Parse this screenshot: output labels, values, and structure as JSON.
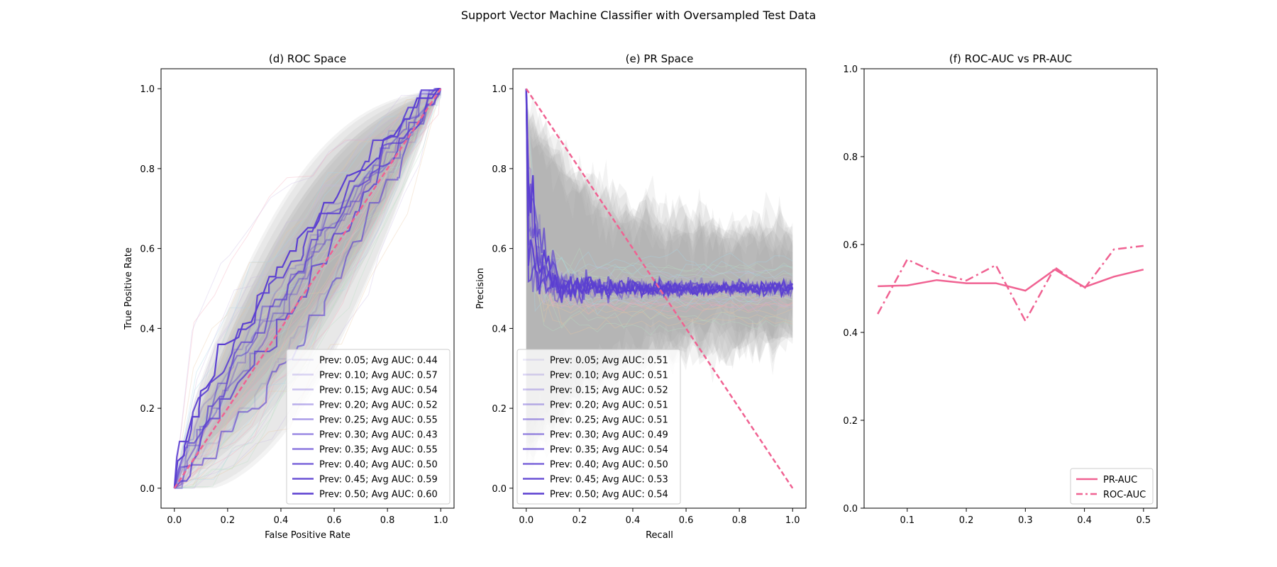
{
  "figure": {
    "title": "Support Vector Machine Classifier with Oversampled Test Data"
  },
  "colors": {
    "diagonal": "#f06292",
    "curve": "#5b3fd1",
    "band": "#9e9e9e",
    "auc_line": "#f06292"
  },
  "chart_data": [
    {
      "type": "line",
      "title": "(d) ROC Space",
      "xlabel": "False Positive Rate",
      "ylabel": "True Positive Rate",
      "xlim": [
        -0.05,
        1.05
      ],
      "ylim": [
        -0.05,
        1.05
      ],
      "xticks": [
        "0.0",
        "0.2",
        "0.4",
        "0.6",
        "0.8",
        "1.0"
      ],
      "yticks": [
        "0.0",
        "0.2",
        "0.4",
        "0.6",
        "0.8",
        "1.0"
      ],
      "grid": false,
      "legend_position": "lower-right",
      "reference_line": {
        "x": [
          0,
          1
        ],
        "y": [
          0,
          1
        ],
        "style": "dashed"
      },
      "series": [
        {
          "name": "Prev: 0.05; Avg AUC: 0.44",
          "prevalence": 0.05,
          "auc": 0.44
        },
        {
          "name": "Prev: 0.10; Avg AUC: 0.57",
          "prevalence": 0.1,
          "auc": 0.57
        },
        {
          "name": "Prev: 0.15; Avg AUC: 0.54",
          "prevalence": 0.15,
          "auc": 0.54
        },
        {
          "name": "Prev: 0.20; Avg AUC: 0.52",
          "prevalence": 0.2,
          "auc": 0.52
        },
        {
          "name": "Prev: 0.25; Avg AUC: 0.55",
          "prevalence": 0.25,
          "auc": 0.55
        },
        {
          "name": "Prev: 0.30; Avg AUC: 0.43",
          "prevalence": 0.3,
          "auc": 0.43
        },
        {
          "name": "Prev: 0.35; Avg AUC: 0.55",
          "prevalence": 0.35,
          "auc": 0.55
        },
        {
          "name": "Prev: 0.40; Avg AUC: 0.50",
          "prevalence": 0.4,
          "auc": 0.5
        },
        {
          "name": "Prev: 0.45; Avg AUC: 0.59",
          "prevalence": 0.45,
          "auc": 0.59
        },
        {
          "name": "Prev: 0.50; Avg AUC: 0.60",
          "prevalence": 0.5,
          "auc": 0.6
        }
      ]
    },
    {
      "type": "line",
      "title": "(e) PR Space",
      "xlabel": "Recall",
      "ylabel": "Precision",
      "xlim": [
        -0.05,
        1.05
      ],
      "ylim": [
        -0.05,
        1.05
      ],
      "xticks": [
        "0.0",
        "0.2",
        "0.4",
        "0.6",
        "0.8",
        "1.0"
      ],
      "yticks": [
        "0.0",
        "0.2",
        "0.4",
        "0.6",
        "0.8",
        "1.0"
      ],
      "grid": false,
      "legend_position": "lower-left",
      "reference_line": {
        "x": [
          0,
          1
        ],
        "y": [
          1,
          0
        ],
        "style": "dashed"
      },
      "series": [
        {
          "name": "Prev: 0.05; Avg AUC: 0.51",
          "prevalence": 0.05,
          "auc": 0.51
        },
        {
          "name": "Prev: 0.10; Avg AUC: 0.51",
          "prevalence": 0.1,
          "auc": 0.51
        },
        {
          "name": "Prev: 0.15; Avg AUC: 0.52",
          "prevalence": 0.15,
          "auc": 0.52
        },
        {
          "name": "Prev: 0.20; Avg AUC: 0.51",
          "prevalence": 0.2,
          "auc": 0.51
        },
        {
          "name": "Prev: 0.25; Avg AUC: 0.51",
          "prevalence": 0.25,
          "auc": 0.51
        },
        {
          "name": "Prev: 0.30; Avg AUC: 0.49",
          "prevalence": 0.3,
          "auc": 0.49
        },
        {
          "name": "Prev: 0.35; Avg AUC: 0.54",
          "prevalence": 0.35,
          "auc": 0.54
        },
        {
          "name": "Prev: 0.40; Avg AUC: 0.50",
          "prevalence": 0.4,
          "auc": 0.5
        },
        {
          "name": "Prev: 0.45; Avg AUC: 0.53",
          "prevalence": 0.45,
          "auc": 0.53
        },
        {
          "name": "Prev: 0.50; Avg AUC: 0.54",
          "prevalence": 0.5,
          "auc": 0.54
        }
      ]
    },
    {
      "type": "line",
      "title": "(f) ROC-AUC vs PR-AUC",
      "xlabel": "",
      "ylabel": "",
      "xlim": [
        0.027,
        0.523
      ],
      "ylim": [
        0.0,
        1.0
      ],
      "xticks": [
        "0.1",
        "0.2",
        "0.3",
        "0.4",
        "0.5"
      ],
      "yticks": [
        "0.0",
        "0.2",
        "0.4",
        "0.6",
        "0.8",
        "1.0"
      ],
      "grid": false,
      "legend_position": "lower-right",
      "x": [
        0.05,
        0.1,
        0.15,
        0.2,
        0.25,
        0.3,
        0.35,
        0.4,
        0.45,
        0.5
      ],
      "series": [
        {
          "name": "PR-AUC",
          "style": "solid",
          "values": [
            0.505,
            0.507,
            0.519,
            0.512,
            0.512,
            0.495,
            0.543,
            0.503,
            0.527,
            0.543
          ]
        },
        {
          "name": "ROC-AUC",
          "style": "dashdot",
          "values": [
            0.442,
            0.566,
            0.535,
            0.518,
            0.553,
            0.426,
            0.548,
            0.5,
            0.589,
            0.597
          ]
        }
      ]
    }
  ]
}
